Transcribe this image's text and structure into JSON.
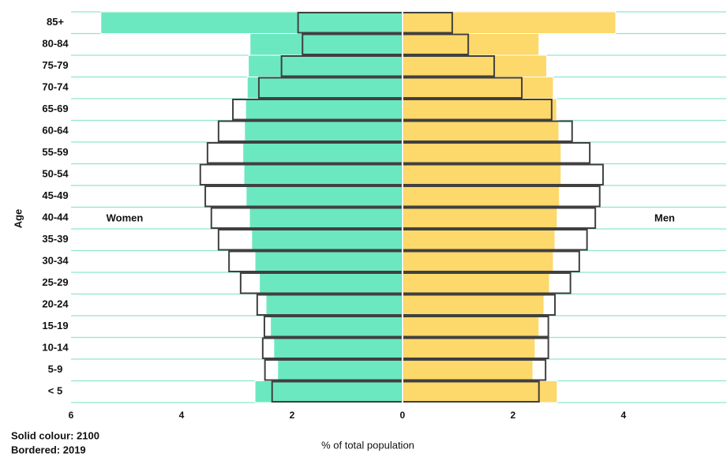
{
  "chart_data": {
    "type": "pyramid",
    "x_label": "% of total population",
    "y_label": "Age",
    "notes": [
      "Solid colour: 2100",
      "Bordered: 2019"
    ],
    "categories": [
      "85+",
      "80-84",
      "75-79",
      "70-74",
      "65-69",
      "60-64",
      "55-59",
      "50-54",
      "45-49",
      "40-44",
      "35-39",
      "30-34",
      "25-29",
      "20-24",
      "15-19",
      "10-14",
      "5-9",
      "< 5"
    ],
    "series": [
      {
        "name": "Women",
        "side": "left",
        "color": "#6ce8c1",
        "border_color": "#404040",
        "values": [
          5.46,
          2.76,
          2.79,
          2.81,
          2.84,
          2.86,
          2.89,
          2.87,
          2.83,
          2.77,
          2.73,
          2.67,
          2.59,
          2.47,
          2.39,
          2.33,
          2.26,
          2.67
        ],
        "outline_values": [
          1.89,
          1.81,
          2.19,
          2.6,
          3.07,
          3.33,
          3.53,
          3.66,
          3.57,
          3.46,
          3.33,
          3.14,
          2.93,
          2.63,
          2.5,
          2.53,
          2.49,
          2.36
        ]
      },
      {
        "name": "Men",
        "side": "right",
        "color": "#fdd86a",
        "border_color": "#404040",
        "values": [
          3.86,
          2.47,
          2.61,
          2.73,
          2.79,
          2.83,
          2.87,
          2.87,
          2.84,
          2.8,
          2.76,
          2.73,
          2.66,
          2.56,
          2.47,
          2.4,
          2.36,
          2.8
        ],
        "outline_values": [
          0.9,
          1.19,
          1.66,
          2.16,
          2.7,
          3.07,
          3.39,
          3.63,
          3.57,
          3.49,
          3.34,
          3.2,
          3.04,
          2.76,
          2.64,
          2.64,
          2.59,
          2.47
        ]
      }
    ],
    "xlim": [
      -6,
      5.86
    ],
    "xticks": [
      {
        "value": -6,
        "label": "6"
      },
      {
        "value": -4,
        "label": "4"
      },
      {
        "value": -2,
        "label": "2"
      },
      0,
      2,
      4
    ]
  }
}
